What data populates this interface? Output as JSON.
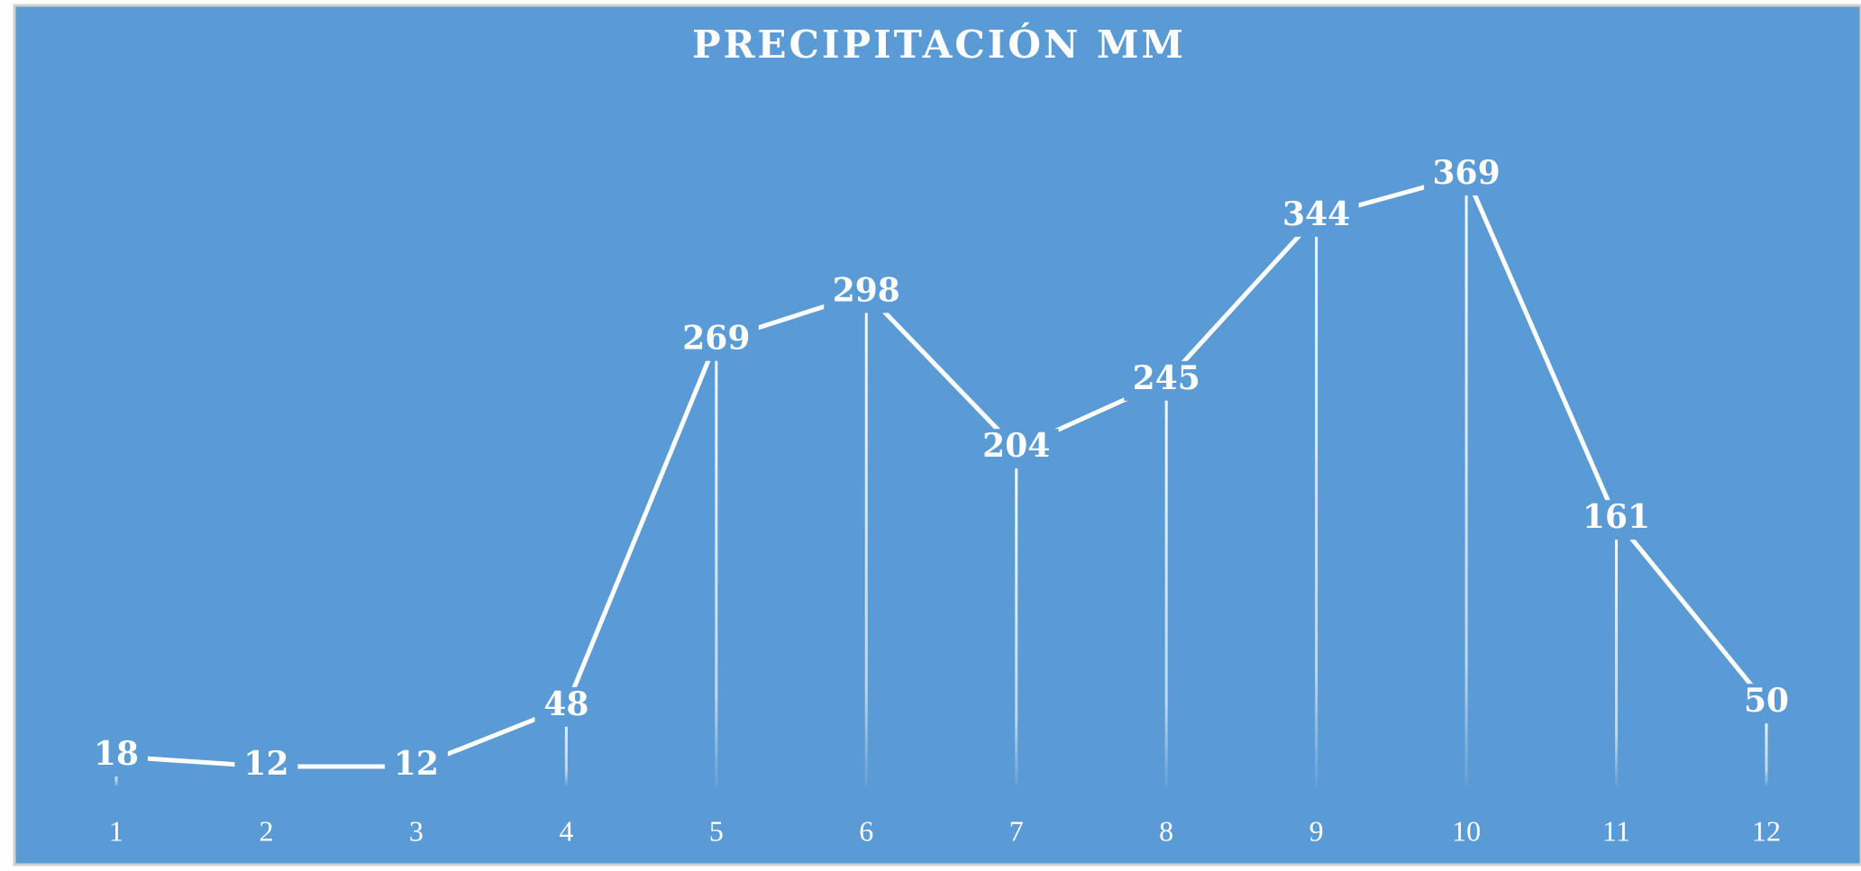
{
  "chart_data": {
    "type": "line",
    "title": "PRECIPITACIÓN  MM",
    "categories": [
      "1",
      "2",
      "3",
      "4",
      "5",
      "6",
      "7",
      "8",
      "9",
      "10",
      "11",
      "12"
    ],
    "series": [
      {
        "name": "Precipitación mm",
        "color": "#ffffff",
        "values": [
          18,
          12,
          12,
          48,
          269,
          298,
          204,
          245,
          344,
          369,
          161,
          50
        ]
      }
    ],
    "ylim": [
      0,
      400
    ],
    "background": "#5b9bd5",
    "data_labels": true,
    "drop_lines": true
  }
}
